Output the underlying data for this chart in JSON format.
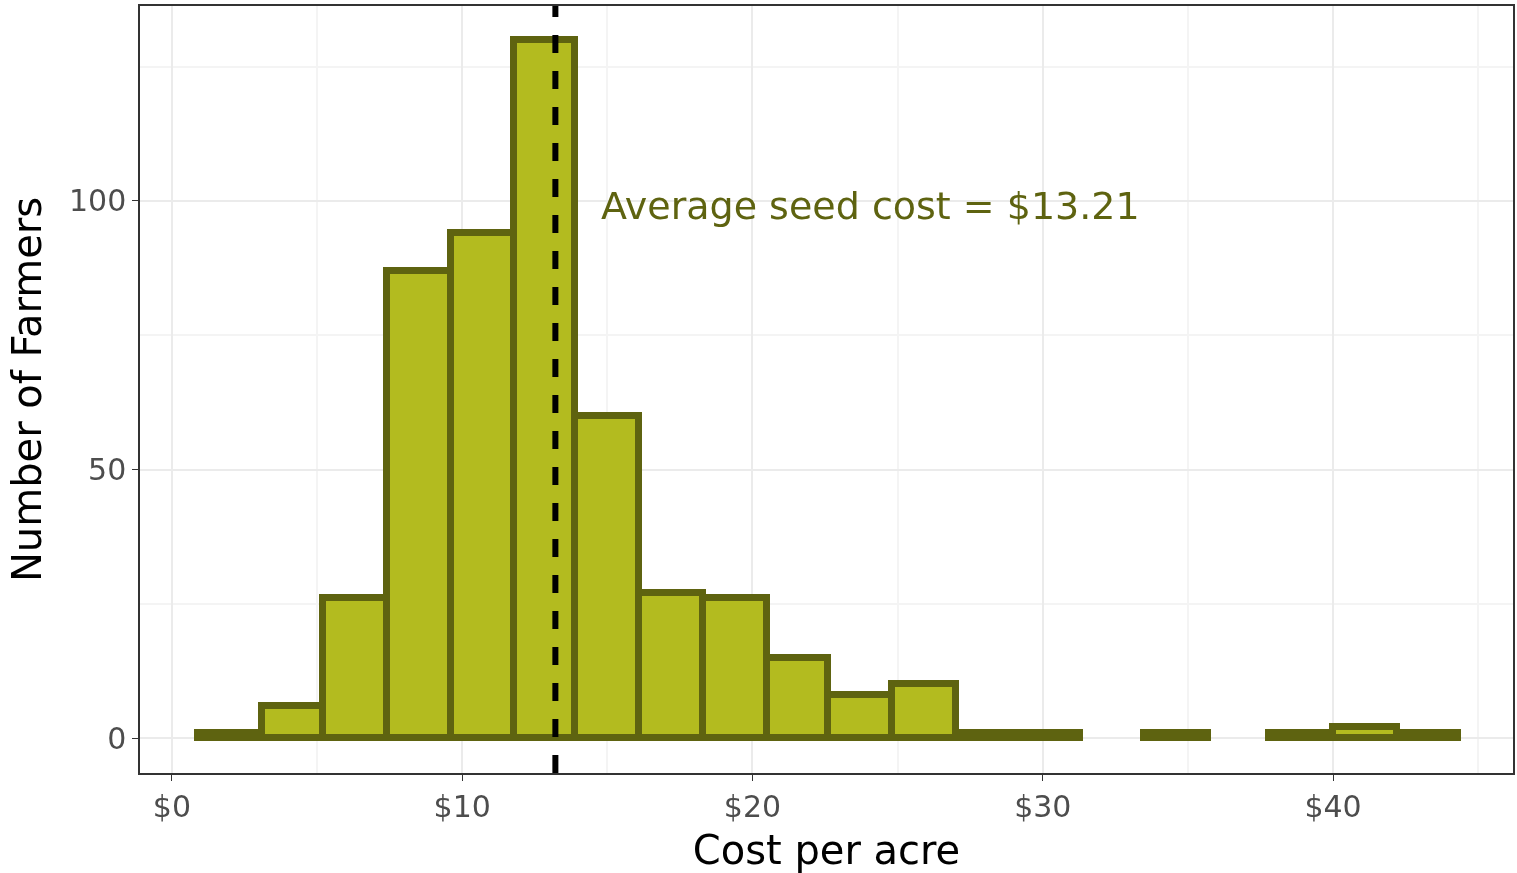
{
  "chart_data": {
    "type": "histogram",
    "xlabel": "Cost per acre",
    "ylabel": "Number of Farmers",
    "bins": [
      0.9,
      3.1,
      5.2,
      7.4,
      9.6,
      11.8,
      13.9,
      16.1,
      18.3,
      20.5,
      22.6,
      24.8,
      27.0,
      29.1,
      31.3,
      33.5,
      35.7,
      37.8,
      40.0,
      42.2,
      44.3
    ],
    "values": [
      1,
      6,
      26,
      87,
      94,
      130,
      60,
      27,
      26,
      15,
      8,
      10,
      1,
      1,
      0,
      1,
      0,
      1,
      2,
      1
    ],
    "color": "#b3bb1f",
    "xlim": [
      -1.1,
      46.2
    ],
    "xticks": [
      {
        "value": 0,
        "label": "$0"
      },
      {
        "value": 10,
        "label": "$10"
      },
      {
        "value": 20,
        "label": "$20"
      },
      {
        "value": 30,
        "label": "$30"
      },
      {
        "value": 40,
        "label": "$40"
      }
    ],
    "ylim": [
      -6.5,
      136.3
    ],
    "yticks": [
      0,
      50,
      100
    ],
    "ref_lines": [
      {
        "axis": "x",
        "value": 13.21,
        "label": "Average seed cost = $13.21",
        "color": "#000000",
        "line_style": "dashed"
      }
    ],
    "grid": true
  }
}
